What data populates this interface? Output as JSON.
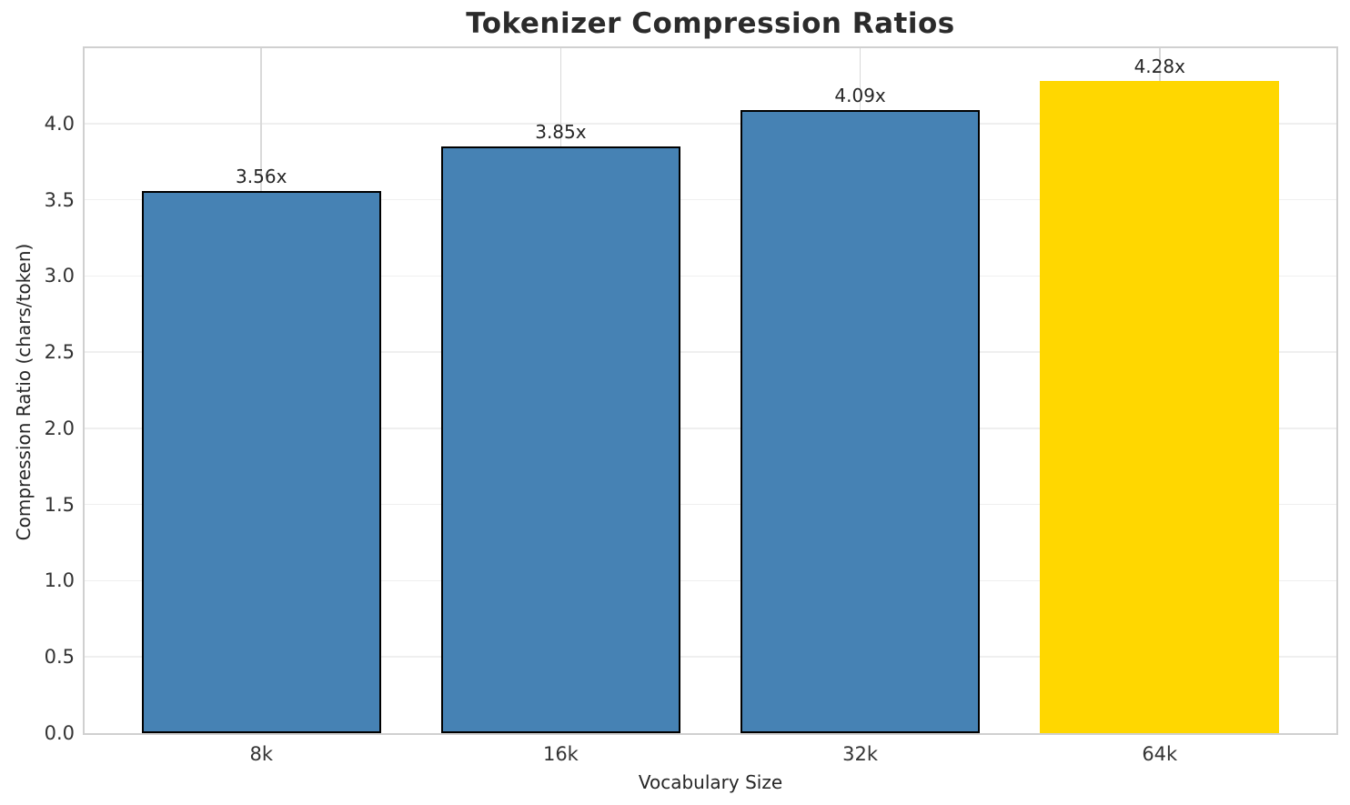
{
  "chart_data": {
    "type": "bar",
    "title": "Tokenizer Compression Ratios",
    "xlabel": "Vocabulary Size",
    "ylabel": "Compression Ratio (chars/token)",
    "categories": [
      "8k",
      "16k",
      "32k",
      "64k"
    ],
    "values": [
      3.56,
      3.85,
      4.09,
      4.28
    ],
    "bar_labels": [
      "3.56x",
      "3.85x",
      "4.09x",
      "4.28x"
    ],
    "bar_colors": [
      "#4682B4",
      "#4682B4",
      "#4682B4",
      "#FFD700"
    ],
    "bar_edge_colors": [
      "#000000",
      "#000000",
      "#000000",
      "none"
    ],
    "ytick_values": [
      0.0,
      0.5,
      1.0,
      1.5,
      2.0,
      2.5,
      3.0,
      3.5,
      4.0
    ],
    "ytick_labels": [
      "0.0",
      "0.5",
      "1.0",
      "1.5",
      "2.0",
      "2.5",
      "3.0",
      "3.5",
      "4.0"
    ],
    "ylim": [
      0,
      4.494
    ],
    "grid": true,
    "legend": "none",
    "accent_blue": "#4682B4",
    "highlight_gold": "#FFD700"
  }
}
